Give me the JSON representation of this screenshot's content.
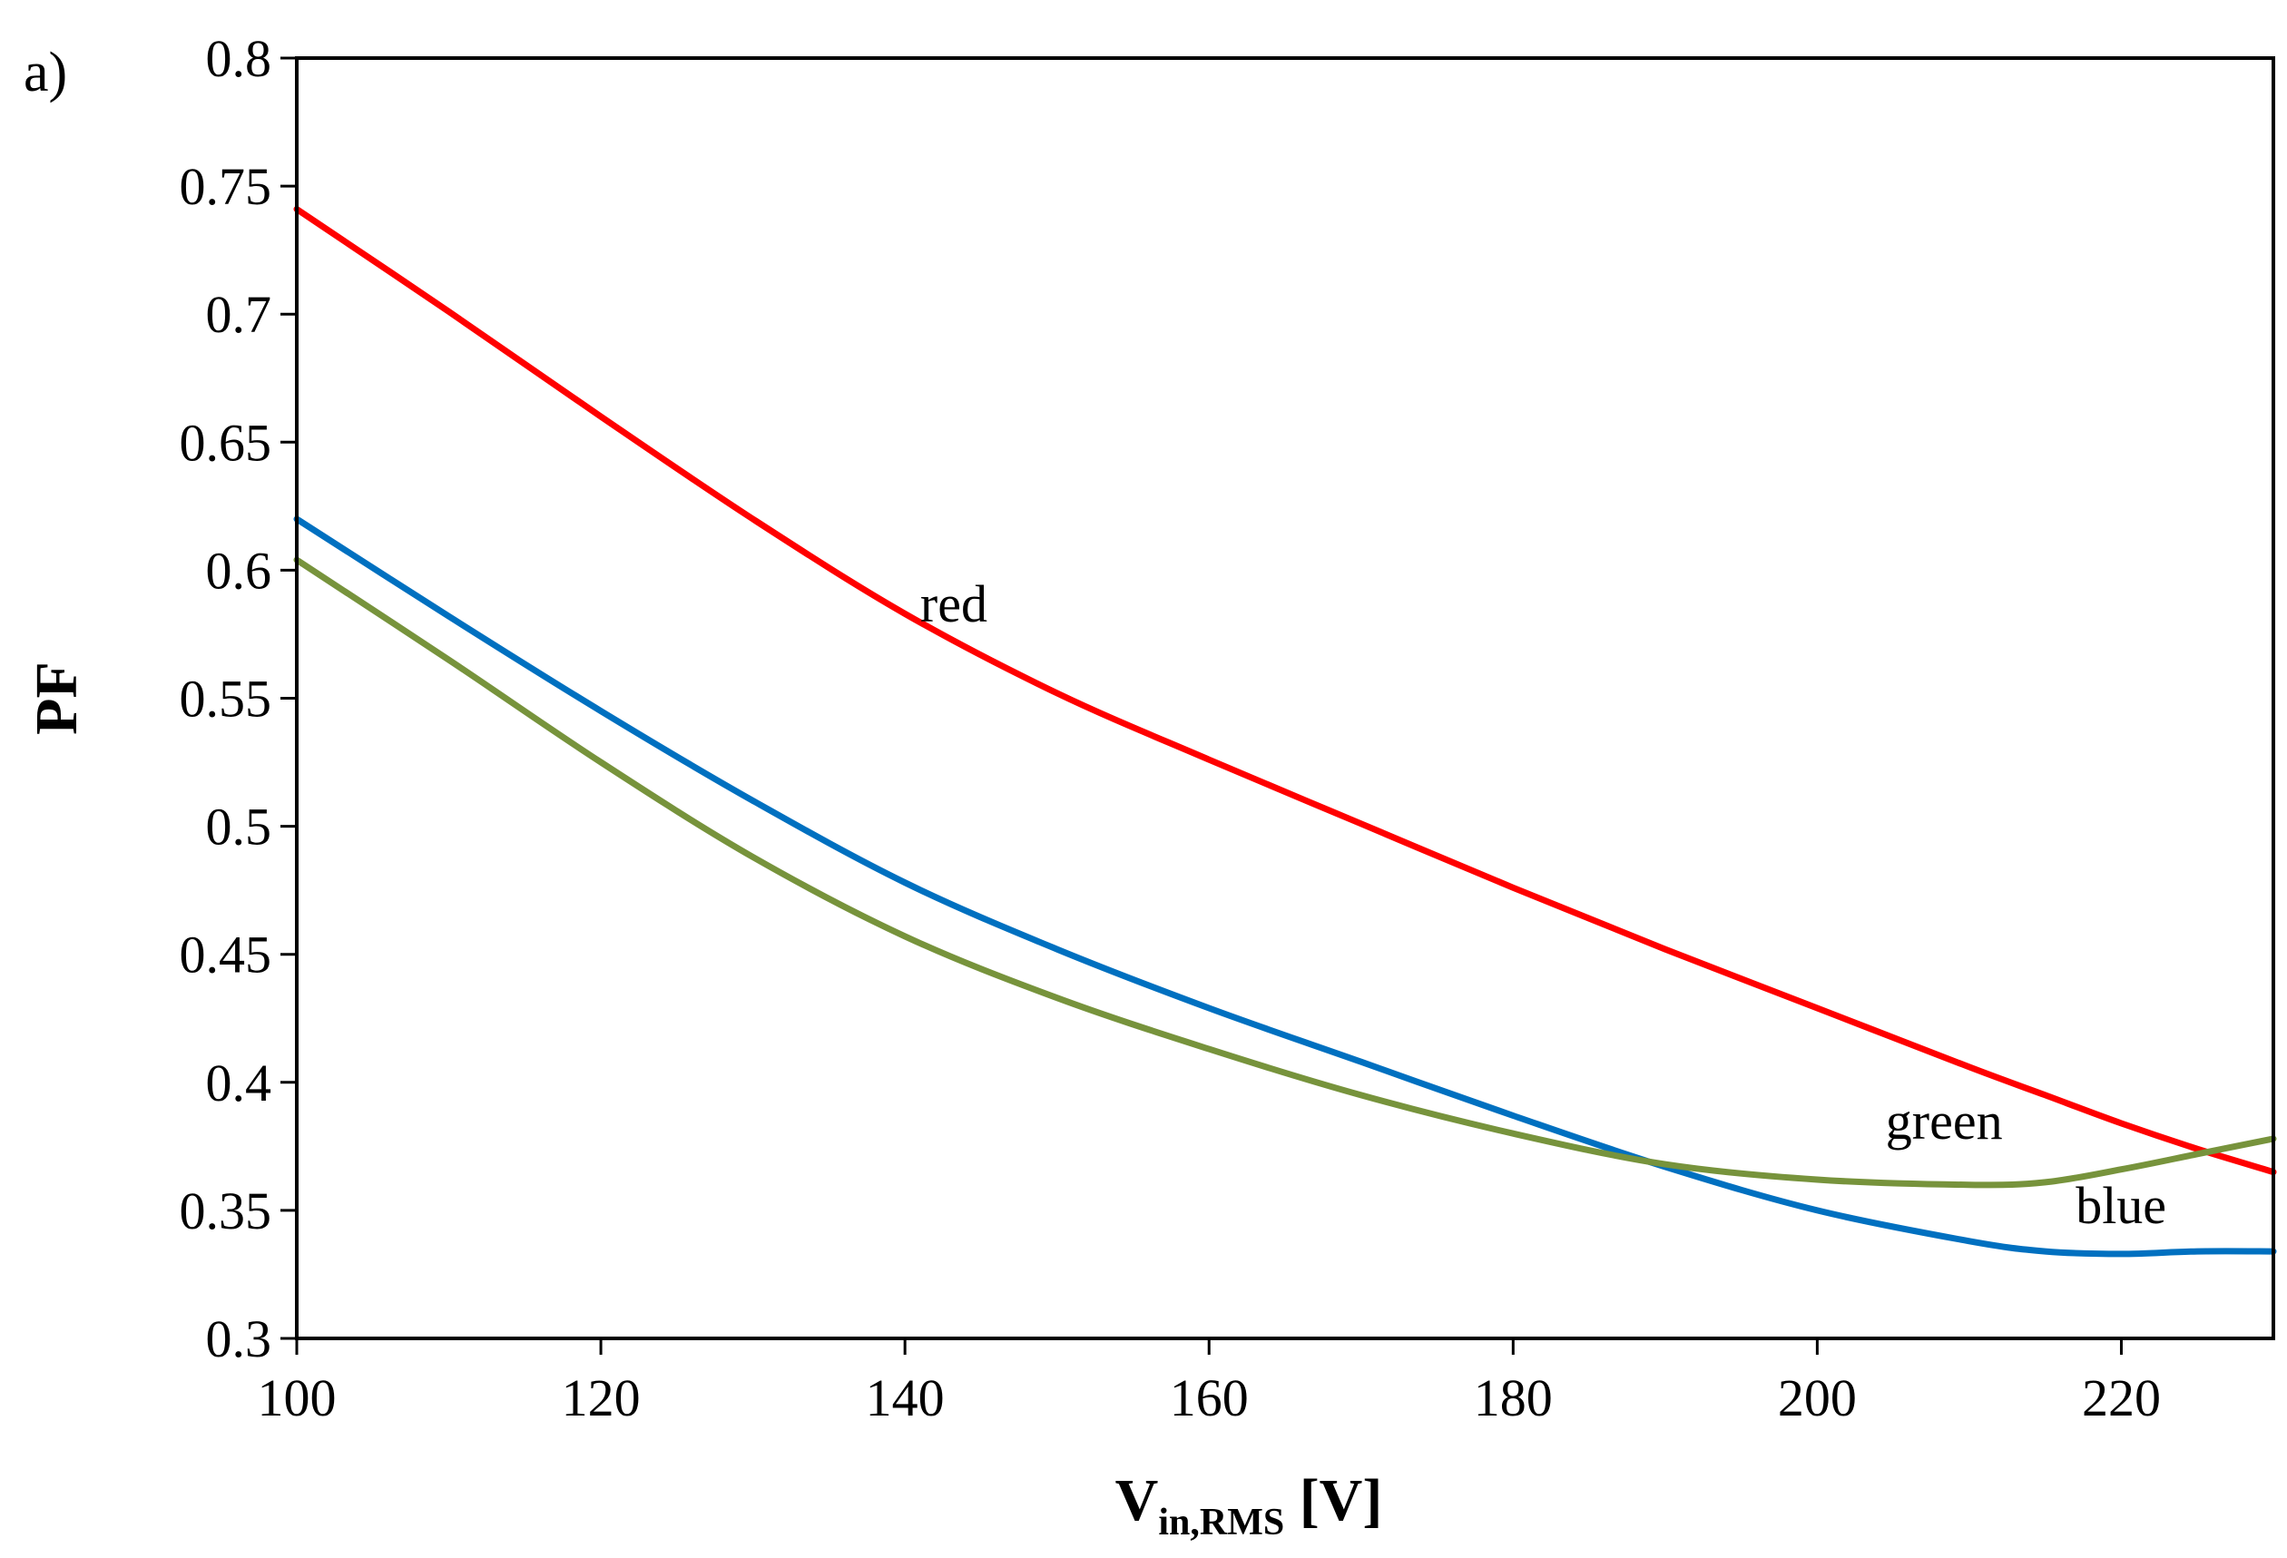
{
  "chart_data": {
    "type": "line",
    "panel_label": "a)",
    "title": "",
    "xlabel": {
      "main": "V",
      "sub": "in,RMS",
      "unit": " [V]"
    },
    "ylabel": "PF",
    "xlim": [
      100,
      230
    ],
    "ylim": [
      0.3,
      0.8
    ],
    "grid": false,
    "x_ticks": [
      100,
      120,
      140,
      160,
      180,
      200,
      220
    ],
    "x_tick_labels": [
      "100",
      "120",
      "140",
      "160",
      "180",
      "200",
      "220"
    ],
    "y_ticks": [
      0.3,
      0.35,
      0.4,
      0.45,
      0.5,
      0.55,
      0.6,
      0.65,
      0.7,
      0.75,
      0.8
    ],
    "y_tick_labels": [
      "0.3",
      "0.35",
      "0.4",
      "0.45",
      "0.5",
      "0.55",
      "0.6",
      "0.65",
      "0.7",
      "0.75",
      "0.8"
    ],
    "x": [
      100,
      110,
      120,
      130,
      140,
      150,
      160,
      170,
      180,
      190,
      200,
      210,
      215,
      220,
      225,
      230
    ],
    "series": [
      {
        "name": "red",
        "color": "#ff0000",
        "values": [
          0.741,
          0.701,
          0.66,
          0.62,
          0.583,
          0.552,
          0.526,
          0.501,
          0.476,
          0.452,
          0.429,
          0.406,
          0.395,
          0.384,
          0.374,
          0.365
        ],
        "label": {
          "text": "red",
          "x": 141,
          "y": 0.58
        }
      },
      {
        "name": "blue",
        "color": "#0070c0",
        "values": [
          0.62,
          0.582,
          0.545,
          0.51,
          0.478,
          0.452,
          0.429,
          0.408,
          0.387,
          0.367,
          0.35,
          0.338,
          0.334,
          0.333,
          0.334,
          0.334
        ],
        "label": {
          "text": "blue",
          "x": 217,
          "y": 0.345
        }
      },
      {
        "name": "green",
        "color": "#77933c",
        "values": [
          0.604,
          0.565,
          0.525,
          0.488,
          0.457,
          0.433,
          0.413,
          0.395,
          0.38,
          0.368,
          0.362,
          0.36,
          0.361,
          0.366,
          0.372,
          0.378
        ],
        "label": {
          "text": "green",
          "x": 204.5,
          "y": 0.378
        }
      }
    ]
  }
}
